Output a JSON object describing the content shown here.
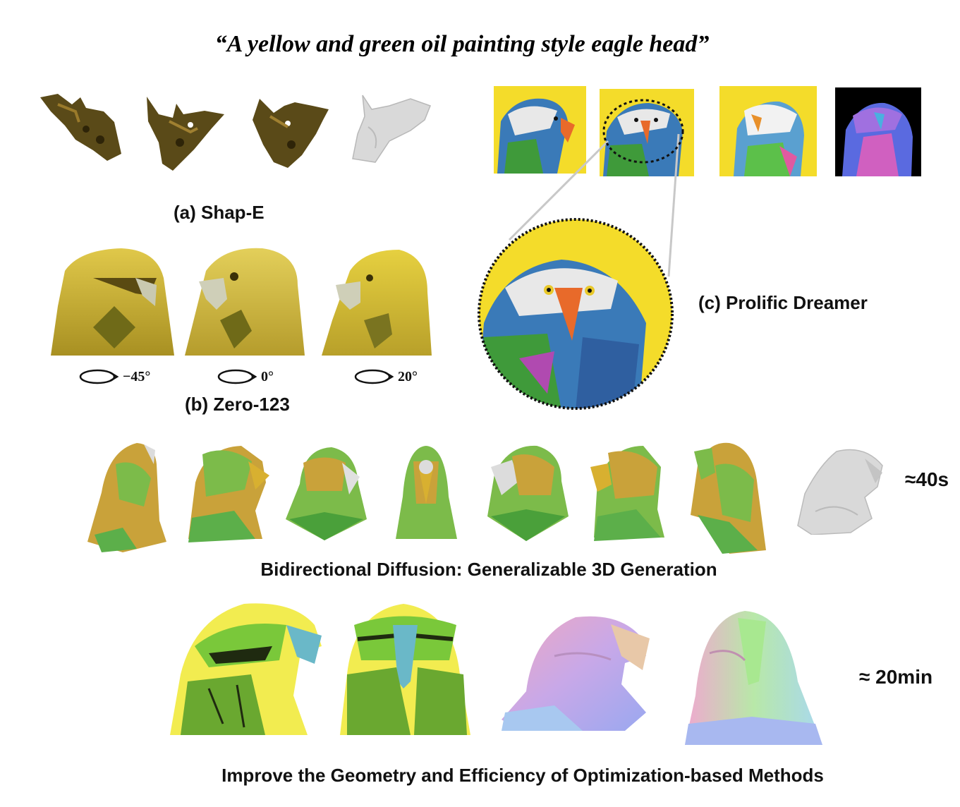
{
  "prompt": "“A yellow and green oil painting style eagle head”",
  "captions": {
    "shap_e": "(a) Shap-E",
    "zero123": "(b) Zero-123",
    "prolific": "(c) Prolific Dreamer",
    "bidirectional": "Bidirectional Diffusion: Generalizable 3D Generation",
    "optimization": "Improve the Geometry and Efficiency of Optimization-based Methods"
  },
  "zero123_angles": [
    "−45°",
    "0°",
    "20°"
  ],
  "times": {
    "bidirectional": "≈40s",
    "optimization": "≈ 20min"
  },
  "colors": {
    "prolific_bg": "#f4dc2a",
    "eagle_yellow": "#d8c23a",
    "eagle_green": "#7cbb4a",
    "mesh_gray": "#d9d9d9",
    "shap_dark": "#5a4a18"
  },
  "icons": [
    "rotation-arrow-icon"
  ]
}
